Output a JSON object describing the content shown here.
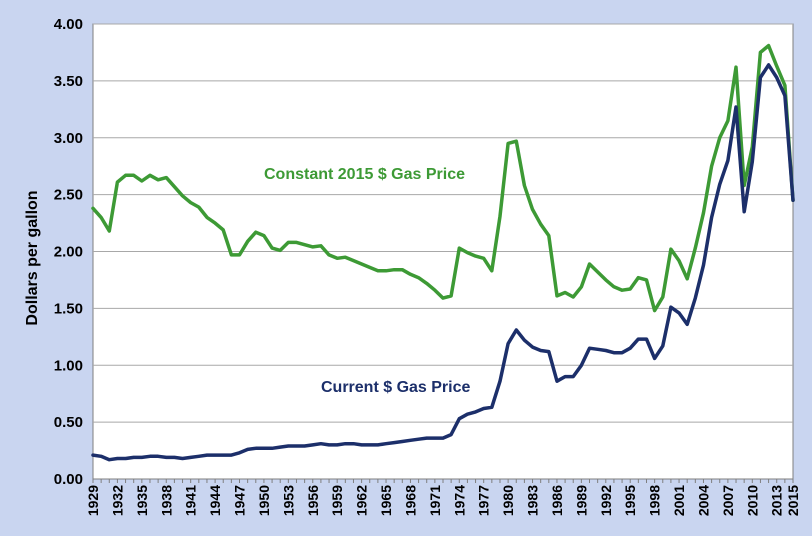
{
  "chart_data": {
    "type": "line",
    "title": "",
    "xlabel": "",
    "ylabel": "Dollars per gallon",
    "xlim": [
      1929,
      2015
    ],
    "ylim": [
      0,
      4.0
    ],
    "grid": true,
    "legend": "inline labels",
    "y_ticks": [
      "0.00",
      "0.50",
      "1.00",
      "1.50",
      "2.00",
      "2.50",
      "3.00",
      "3.50",
      "4.00"
    ],
    "x_ticks": [
      "1929",
      "1932",
      "1935",
      "1938",
      "1941",
      "1944",
      "1947",
      "1950",
      "1953",
      "1956",
      "1959",
      "1962",
      "1965",
      "1968",
      "1971",
      "1974",
      "1977",
      "1980",
      "1983",
      "1986",
      "1989",
      "1992",
      "1995",
      "1998",
      "2001",
      "2004",
      "2007",
      "2010",
      "2013",
      "2015"
    ],
    "x": [
      1929,
      1930,
      1931,
      1932,
      1933,
      1934,
      1935,
      1936,
      1937,
      1938,
      1939,
      1940,
      1941,
      1942,
      1943,
      1944,
      1945,
      1946,
      1947,
      1948,
      1949,
      1950,
      1951,
      1952,
      1953,
      1954,
      1955,
      1956,
      1957,
      1958,
      1959,
      1960,
      1961,
      1962,
      1963,
      1964,
      1965,
      1966,
      1967,
      1968,
      1969,
      1970,
      1971,
      1972,
      1973,
      1974,
      1975,
      1976,
      1977,
      1978,
      1979,
      1980,
      1981,
      1982,
      1983,
      1984,
      1985,
      1986,
      1987,
      1988,
      1989,
      1990,
      1991,
      1992,
      1993,
      1994,
      1995,
      1996,
      1997,
      1998,
      1999,
      2000,
      2001,
      2002,
      2003,
      2004,
      2005,
      2006,
      2007,
      2008,
      2009,
      2010,
      2011,
      2012,
      2013,
      2014,
      2015
    ],
    "series": [
      {
        "name": "Constant 2015 $ Gas Price",
        "color": "#3d9a35",
        "values": [
          2.38,
          2.3,
          2.18,
          2.61,
          2.67,
          2.67,
          2.62,
          2.67,
          2.63,
          2.65,
          2.57,
          2.49,
          2.43,
          2.39,
          2.3,
          2.25,
          2.19,
          1.97,
          1.97,
          2.09,
          2.17,
          2.14,
          2.03,
          2.01,
          2.08,
          2.08,
          2.06,
          2.04,
          2.05,
          1.97,
          1.94,
          1.95,
          1.92,
          1.89,
          1.86,
          1.83,
          1.83,
          1.84,
          1.84,
          1.8,
          1.77,
          1.72,
          1.66,
          1.59,
          1.61,
          2.03,
          1.99,
          1.96,
          1.94,
          1.83,
          2.31,
          2.95,
          2.97,
          2.58,
          2.37,
          2.24,
          2.14,
          1.61,
          1.64,
          1.6,
          1.69,
          1.89,
          1.82,
          1.75,
          1.69,
          1.66,
          1.67,
          1.77,
          1.75,
          1.48,
          1.6,
          2.02,
          1.92,
          1.76,
          2.03,
          2.34,
          2.75,
          3.0,
          3.15,
          3.62,
          2.58,
          2.92,
          3.75,
          3.81,
          3.63,
          3.46,
          2.45
        ]
      },
      {
        "name": "Current $ Gas Price",
        "color": "#1c2f6a",
        "values": [
          0.21,
          0.2,
          0.17,
          0.18,
          0.18,
          0.19,
          0.19,
          0.2,
          0.2,
          0.19,
          0.19,
          0.18,
          0.19,
          0.2,
          0.21,
          0.21,
          0.21,
          0.21,
          0.23,
          0.26,
          0.27,
          0.27,
          0.27,
          0.28,
          0.29,
          0.29,
          0.29,
          0.3,
          0.31,
          0.3,
          0.3,
          0.31,
          0.31,
          0.3,
          0.3,
          0.3,
          0.31,
          0.32,
          0.33,
          0.34,
          0.35,
          0.36,
          0.36,
          0.36,
          0.39,
          0.53,
          0.57,
          0.59,
          0.62,
          0.63,
          0.86,
          1.19,
          1.31,
          1.22,
          1.16,
          1.13,
          1.12,
          0.86,
          0.9,
          0.9,
          1.0,
          1.15,
          1.14,
          1.13,
          1.11,
          1.11,
          1.15,
          1.23,
          1.23,
          1.06,
          1.17,
          1.51,
          1.46,
          1.36,
          1.59,
          1.88,
          2.3,
          2.59,
          2.8,
          3.27,
          2.35,
          2.79,
          3.53,
          3.64,
          3.53,
          3.37,
          2.45
        ]
      }
    ],
    "annotations": [
      {
        "text": "Constant 2015 $ Gas Price",
        "series": "Constant 2015 $ Gas Price"
      },
      {
        "text": "Current $ Gas Price",
        "series": "Current $ Gas Price"
      }
    ]
  },
  "style": {
    "background": "#c9d5f0",
    "plot_background": "#ffffff",
    "grid_color": "#a8a8a8"
  }
}
